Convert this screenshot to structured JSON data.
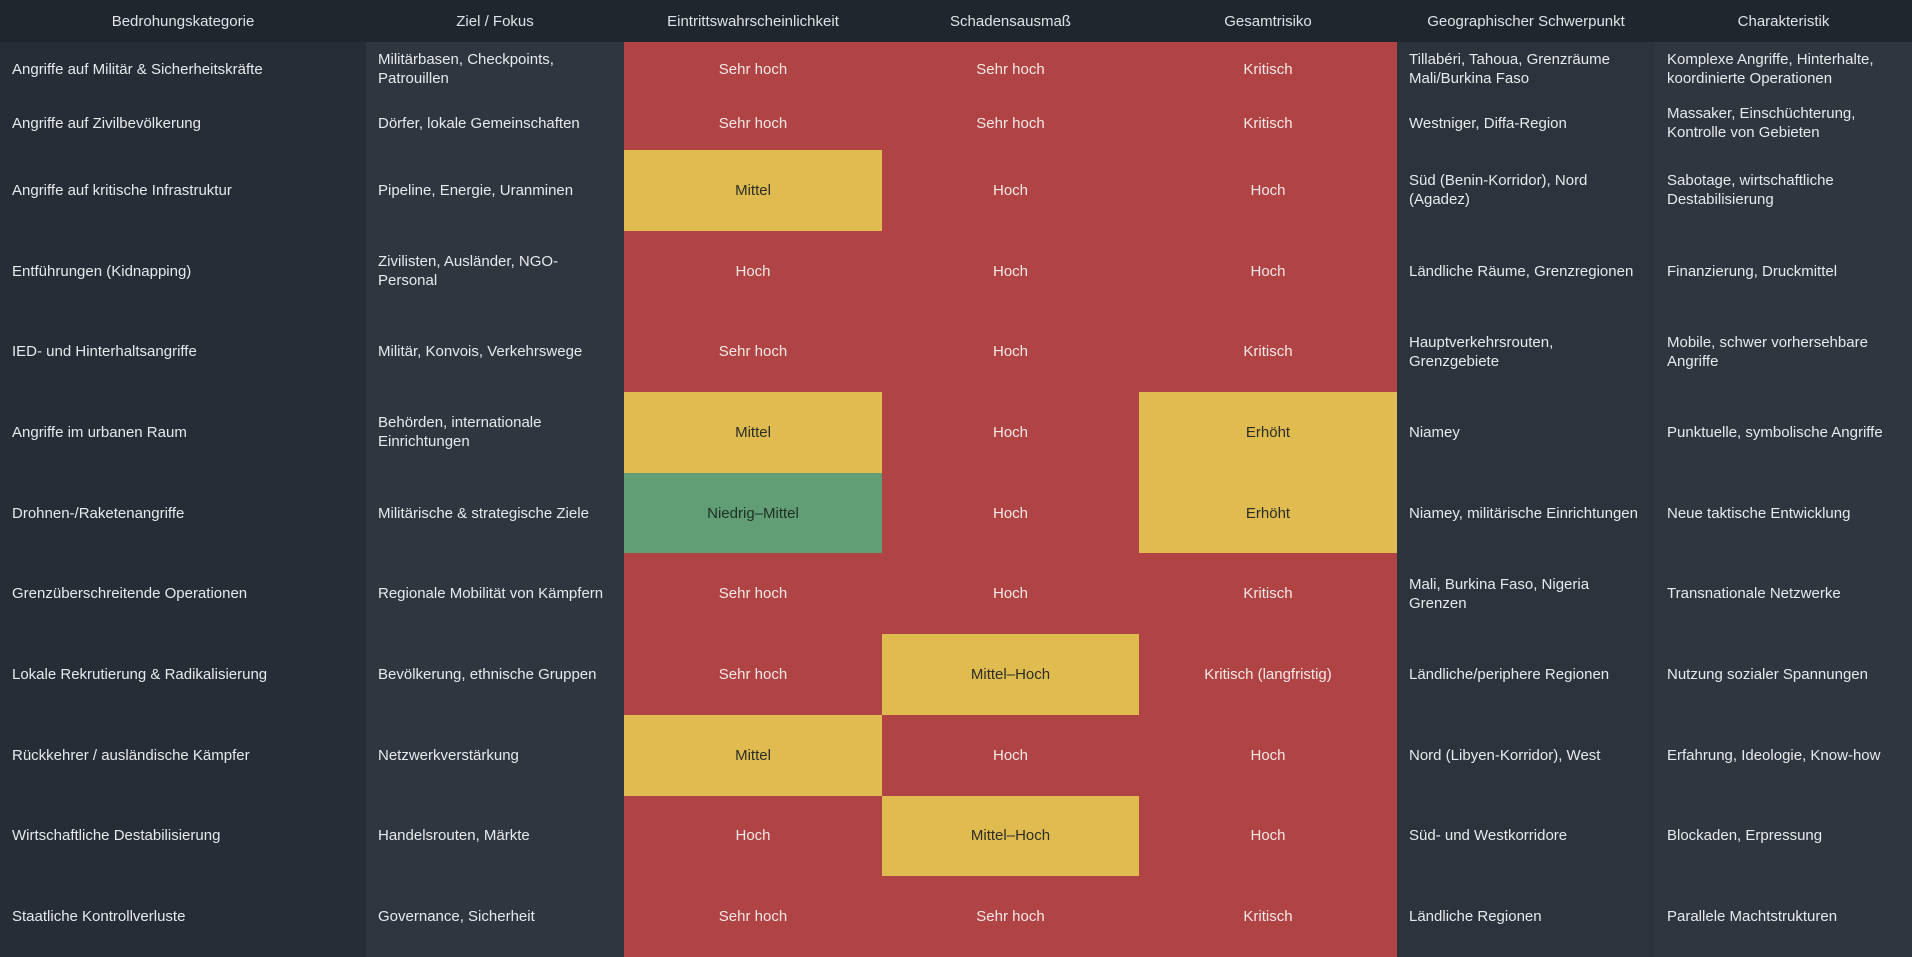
{
  "severity_colors": {
    "high": "#b04343",
    "medium": "#e0bb50",
    "low": "#619e76",
    "text_on_dark": "#e7eaec",
    "text_on_high": "#f3e8e7",
    "text_on_medium": "#2b2d27",
    "text_on_low": "#1f2e26"
  },
  "chart_data": {
    "type": "table",
    "columns": [
      "Bedrohungskategorie",
      "Ziel / Fokus",
      "Eintrittswahrscheinlichkeit",
      "Schadensausmaß",
      "Gesamtrisiko",
      "Geographischer Schwerpunkt",
      "Charakteristik"
    ],
    "rows": [
      {
        "category": "Angriffe auf Militär & Sicherheitskräfte",
        "target": "Militärbasen, Checkpoints, Patrouillen",
        "probability": {
          "label": "Sehr hoch",
          "severity": "high"
        },
        "damage": {
          "label": "Sehr hoch",
          "severity": "high"
        },
        "overall": {
          "label": "Kritisch",
          "severity": "high"
        },
        "geography": "Tillabéri, Tahoua, Grenzräume Mali/Burkina Faso",
        "characteristics": "Komplexe Angriffe, Hinterhalte, koordinierte Operationen"
      },
      {
        "category": "Angriffe auf Zivilbevölkerung",
        "target": "Dörfer, lokale Gemeinschaften",
        "probability": {
          "label": "Sehr hoch",
          "severity": "high"
        },
        "damage": {
          "label": "Sehr hoch",
          "severity": "high"
        },
        "overall": {
          "label": "Kritisch",
          "severity": "high"
        },
        "geography": "Westniger, Diffa-Region",
        "characteristics": "Massaker, Einschüchterung, Kontrolle von Gebieten"
      },
      {
        "category": "Angriffe auf kritische Infrastruktur",
        "target": "Pipeline, Energie, Uranminen",
        "probability": {
          "label": "Mittel",
          "severity": "medium"
        },
        "damage": {
          "label": "Hoch",
          "severity": "high"
        },
        "overall": {
          "label": "Hoch",
          "severity": "high"
        },
        "geography": "Süd (Benin-Korridor), Nord (Agadez)",
        "characteristics": "Sabotage, wirtschaftliche Destabilisierung"
      },
      {
        "category": "Entführungen (Kidnapping)",
        "target": "Zivilisten, Ausländer, NGO-Personal",
        "probability": {
          "label": "Hoch",
          "severity": "high"
        },
        "damage": {
          "label": "Hoch",
          "severity": "high"
        },
        "overall": {
          "label": "Hoch",
          "severity": "high"
        },
        "geography": "Ländliche Räume, Grenzregionen",
        "characteristics": "Finanzierung, Druckmittel"
      },
      {
        "category": "IED- und Hinterhaltsangriffe",
        "target": "Militär, Konvois, Verkehrswege",
        "probability": {
          "label": "Sehr hoch",
          "severity": "high"
        },
        "damage": {
          "label": "Hoch",
          "severity": "high"
        },
        "overall": {
          "label": "Kritisch",
          "severity": "high"
        },
        "geography": "Hauptverkehrsrouten, Grenzgebiete",
        "characteristics": "Mobile, schwer vorhersehbare Angriffe"
      },
      {
        "category": "Angriffe im urbanen Raum",
        "target": "Behörden, internationale Einrichtungen",
        "probability": {
          "label": "Mittel",
          "severity": "medium"
        },
        "damage": {
          "label": "Hoch",
          "severity": "high"
        },
        "overall": {
          "label": "Erhöht",
          "severity": "medium"
        },
        "geography": "Niamey",
        "characteristics": "Punktuelle, symbolische Angriffe"
      },
      {
        "category": "Drohnen-/Raketenangriffe",
        "target": "Militärische & strategische Ziele",
        "probability": {
          "label": "Niedrig–Mittel",
          "severity": "low"
        },
        "damage": {
          "label": "Hoch",
          "severity": "high"
        },
        "overall": {
          "label": "Erhöht",
          "severity": "medium"
        },
        "geography": "Niamey, militärische Einrichtungen",
        "characteristics": "Neue taktische Entwicklung"
      },
      {
        "category": "Grenzüberschreitende Operationen",
        "target": "Regionale Mobilität von Kämpfern",
        "probability": {
          "label": "Sehr hoch",
          "severity": "high"
        },
        "damage": {
          "label": "Hoch",
          "severity": "high"
        },
        "overall": {
          "label": "Kritisch",
          "severity": "high"
        },
        "geography": "Mali, Burkina Faso, Nigeria Grenzen",
        "characteristics": "Transnationale Netzwerke"
      },
      {
        "category": "Lokale Rekrutierung & Radikalisierung",
        "target": "Bevölkerung, ethnische Gruppen",
        "probability": {
          "label": "Sehr hoch",
          "severity": "high"
        },
        "damage": {
          "label": "Mittel–Hoch",
          "severity": "medium"
        },
        "overall": {
          "label": "Kritisch (langfristig)",
          "severity": "high"
        },
        "geography": "Ländliche/periphere Regionen",
        "characteristics": "Nutzung sozialer Spannungen"
      },
      {
        "category": "Rückkehrer / ausländische Kämpfer",
        "target": "Netzwerkverstärkung",
        "probability": {
          "label": "Mittel",
          "severity": "medium"
        },
        "damage": {
          "label": "Hoch",
          "severity": "high"
        },
        "overall": {
          "label": "Hoch",
          "severity": "high"
        },
        "geography": "Nord (Libyen-Korridor), West",
        "characteristics": "Erfahrung, Ideologie, Know-how"
      },
      {
        "category": "Wirtschaftliche Destabilisierung",
        "target": "Handelsrouten, Märkte",
        "probability": {
          "label": "Hoch",
          "severity": "high"
        },
        "damage": {
          "label": "Mittel–Hoch",
          "severity": "medium"
        },
        "overall": {
          "label": "Hoch",
          "severity": "high"
        },
        "geography": "Süd- und Westkorridore",
        "characteristics": "Blockaden, Erpressung"
      },
      {
        "category": "Staatliche Kontrollverluste",
        "target": "Governance, Sicherheit",
        "probability": {
          "label": "Sehr hoch",
          "severity": "high"
        },
        "damage": {
          "label": "Sehr hoch",
          "severity": "high"
        },
        "overall": {
          "label": "Kritisch",
          "severity": "high"
        },
        "geography": "Ländliche Regionen",
        "characteristics": "Parallele Machtstrukturen"
      }
    ]
  }
}
